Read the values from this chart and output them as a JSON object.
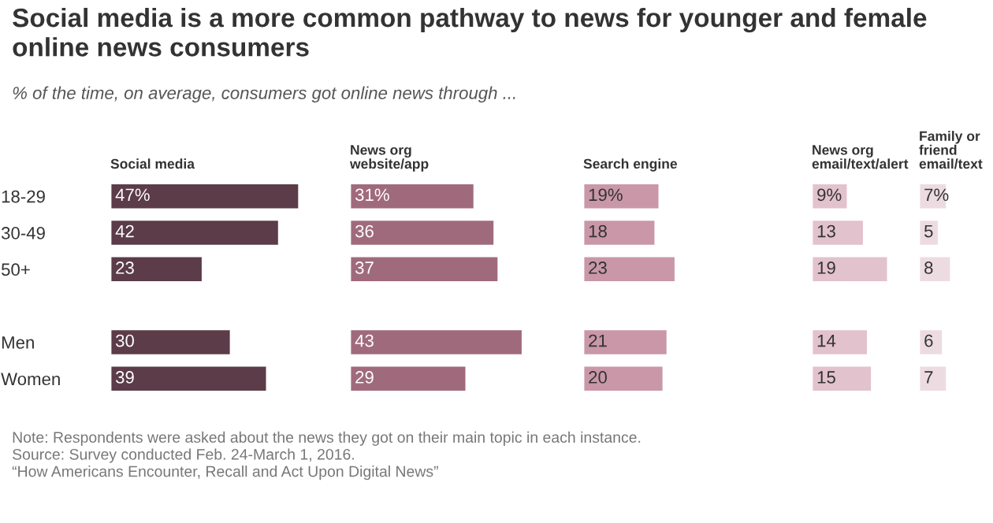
{
  "chart_data": [
    {
      "type": "bar",
      "orientation": "horizontal",
      "title": "Social media",
      "tick_labels": "y",
      "color": "#5b3c48",
      "categories": [
        "18-29",
        "30-49",
        "50+",
        null,
        "Men",
        "Women"
      ],
      "values": [
        47,
        42,
        23,
        null,
        30,
        39
      ],
      "value_labels": [
        "47%",
        "42",
        "23",
        null,
        "30",
        "39"
      ],
      "annotations": [
        "Social media is a more common pathway to news for younger and female online news consumers",
        "% of the time, on average, consumers got online news through ...",
        "Note: Respondents were asked about the news they got on their main topic in each instance.\nSource: Survey conducted Feb. 24-March 1, 2016.\n“How Americans Encounter, Recall and Act Upon Digital News”"
      ]
    },
    {
      "type": "bar",
      "orientation": "horizontal",
      "title": "News org\nwebsite/app",
      "tick_labels": false,
      "color": "#a06a7d",
      "categories": [
        null,
        null,
        null,
        null,
        null,
        null
      ],
      "values": [
        31,
        36,
        37,
        null,
        43,
        29
      ],
      "value_labels": [
        "31%",
        "36",
        "37",
        null,
        "43",
        "29"
      ]
    },
    {
      "type": "bar",
      "orientation": "horizontal",
      "title": "Search engine",
      "tick_labels": false,
      "color": "#c997a8",
      "categories": [
        null,
        null,
        null,
        null,
        null,
        null
      ],
      "values": [
        19,
        18,
        23,
        null,
        21,
        20
      ],
      "value_labels": [
        "19%",
        "18",
        "23",
        null,
        "21",
        "20"
      ]
    },
    {
      "type": "bar",
      "orientation": "horizontal",
      "title": "News org\nemail/text/alert",
      "tick_labels": false,
      "color": "#e2c2cc",
      "categories": [
        null,
        null,
        null,
        null,
        null,
        null
      ],
      "values": [
        9,
        13,
        19,
        null,
        14,
        15
      ],
      "value_labels": [
        "9%",
        "13",
        "19",
        null,
        "14",
        "15"
      ]
    },
    {
      "type": "bar",
      "orientation": "horizontal",
      "title": "Family or\nfriend\nemail/text",
      "tick_labels": false,
      "color": "#ecdce1",
      "categories": [
        null,
        null,
        null,
        null,
        null,
        null
      ],
      "values": [
        7,
        5,
        8,
        null,
        6,
        7
      ],
      "value_labels": [
        "7%",
        "5",
        "8",
        null,
        "6",
        "7"
      ]
    }
  ]
}
